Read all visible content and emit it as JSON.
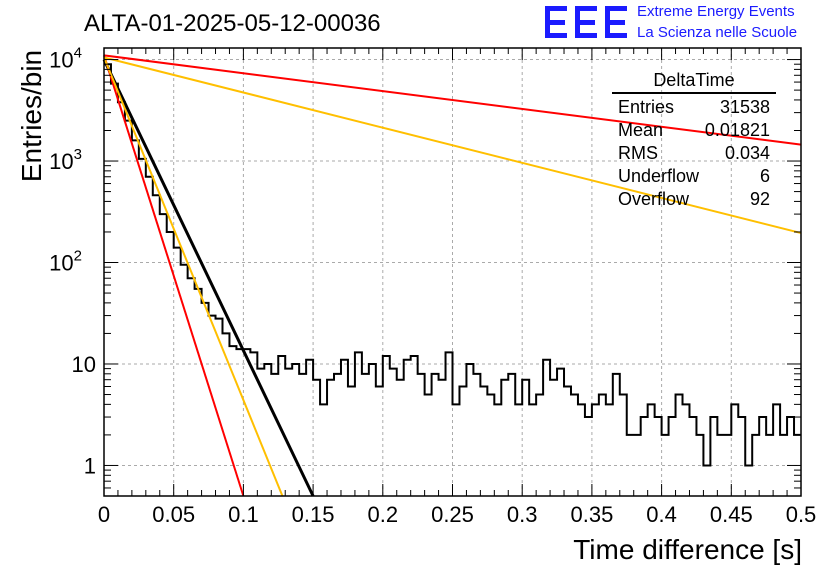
{
  "title": "ALTA-01-2025-05-12-00036",
  "logo": {
    "sub1": "Extreme Energy Events",
    "sub2": "La Scienza nelle Scuole"
  },
  "stats": {
    "name": "DeltaTime",
    "rows": [
      {
        "label": "Entries",
        "value": "31538"
      },
      {
        "label": "Mean",
        "value": "0.01821"
      },
      {
        "label": "RMS",
        "value": "0.034"
      },
      {
        "label": "Underflow",
        "value": "6"
      },
      {
        "label": "Overflow",
        "value": "92"
      }
    ]
  },
  "chart_data": {
    "type": "line",
    "xlabel": "Time difference [s]",
    "ylabel": "Entries/bin",
    "xlim": [
      0,
      0.5
    ],
    "ylim": [
      0.5,
      13000
    ],
    "ylog": true,
    "grid": true,
    "x_ticks": [
      "0",
      "0.05",
      "0.1",
      "0.15",
      "0.2",
      "0.25",
      "0.3",
      "0.35",
      "0.4",
      "0.45",
      "0.5"
    ],
    "y_ticks": [
      {
        "value": 1,
        "label": "1"
      },
      {
        "value": 10,
        "label": "10"
      },
      {
        "value": 100,
        "label": "10",
        "exp": "2"
      },
      {
        "value": 1000,
        "label": "10",
        "exp": "3"
      },
      {
        "value": 10000,
        "label": "10",
        "exp": "4"
      }
    ],
    "histogram": {
      "color": "#000000",
      "bin_width": 0.005,
      "counts": [
        9000,
        5800,
        3800,
        2500,
        1600,
        1050,
        700,
        460,
        300,
        200,
        140,
        95,
        70,
        55,
        40,
        30,
        28,
        20,
        15,
        14,
        14,
        13,
        9,
        10,
        8,
        12,
        9,
        10,
        8,
        11,
        7,
        4,
        7,
        8,
        11,
        6,
        13,
        8,
        10,
        6,
        12,
        9,
        7,
        11,
        12,
        8,
        5,
        8,
        7,
        13,
        4,
        6,
        10,
        8,
        6,
        5,
        4,
        7,
        8,
        4,
        7,
        4,
        5,
        11,
        7,
        9,
        6,
        5,
        4,
        3,
        4,
        5,
        4,
        8,
        5,
        2,
        2,
        3,
        4,
        3,
        2,
        3,
        5,
        4,
        3,
        2,
        1,
        3,
        2,
        2,
        4,
        3,
        1,
        2,
        3,
        2,
        4,
        2,
        3,
        2
      ]
    },
    "fit_lines": [
      {
        "color": "#000000",
        "x": [
          0,
          0.15
        ],
        "y": [
          10000,
          0.5
        ]
      },
      {
        "color": "#ff0000",
        "x": [
          0,
          0.1
        ],
        "y": [
          11000,
          0.5
        ]
      },
      {
        "color": "#ffbf00",
        "x": [
          0,
          0.128
        ],
        "y": [
          10500,
          0.5
        ]
      },
      {
        "color": "#ff0000",
        "x": [
          0,
          0.5
        ],
        "y": [
          11000,
          1450
        ]
      },
      {
        "color": "#ffbf00",
        "x": [
          0,
          0.5
        ],
        "y": [
          10500,
          195
        ]
      }
    ]
  }
}
